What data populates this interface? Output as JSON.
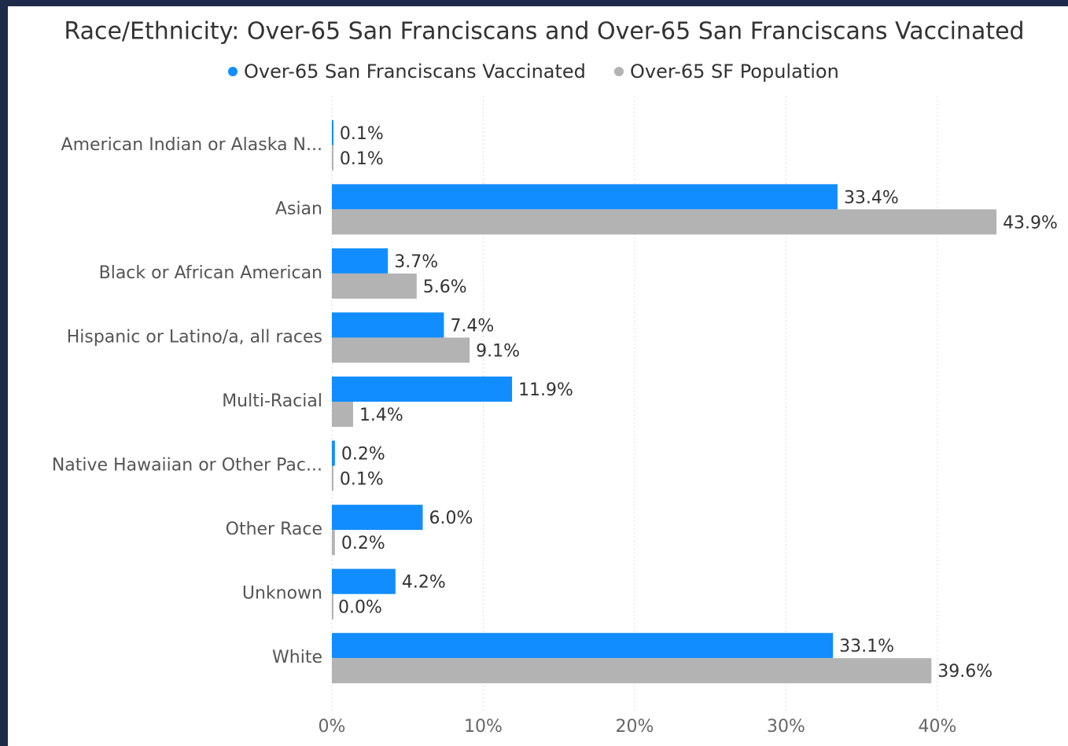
{
  "chart_data": {
    "type": "hbar",
    "title": "Race/Ethnicity: Over-65 San Franciscans and Over-65 San Franciscans Vaccinated",
    "categories": [
      "American Indian or Alaska N...",
      "Asian",
      "Black or African American",
      "Hispanic or Latino/a, all races",
      "Multi-Racial",
      "Native Hawaiian or Other Pac...",
      "Other Race",
      "Unknown",
      "White"
    ],
    "series": [
      {
        "name": "Over-65 San Franciscans Vaccinated",
        "color": "#118dff",
        "values": [
          0.1,
          33.4,
          3.7,
          7.4,
          11.9,
          0.2,
          6.0,
          4.2,
          33.1
        ],
        "value_labels": [
          "0.1%",
          "33.4%",
          "3.7%",
          "7.4%",
          "11.9%",
          "0.2%",
          "6.0%",
          "4.2%",
          "33.1%"
        ]
      },
      {
        "name": "Over-65 SF Population",
        "color": "#b3b3b3",
        "values": [
          0.1,
          43.9,
          5.6,
          9.1,
          1.4,
          0.1,
          0.2,
          0.0,
          39.6
        ],
        "value_labels": [
          "0.1%",
          "43.9%",
          "5.6%",
          "9.1%",
          "1.4%",
          "0.1%",
          "0.2%",
          "0.0%",
          "39.6%"
        ]
      }
    ],
    "xlim": [
      0,
      45
    ],
    "xticks": [
      {
        "value": 0,
        "label": "0%"
      },
      {
        "value": 10,
        "label": "10%"
      },
      {
        "value": 20,
        "label": "20%"
      },
      {
        "value": 30,
        "label": "30%"
      },
      {
        "value": 40,
        "label": "40%"
      }
    ],
    "grid": true,
    "legend": "top"
  }
}
